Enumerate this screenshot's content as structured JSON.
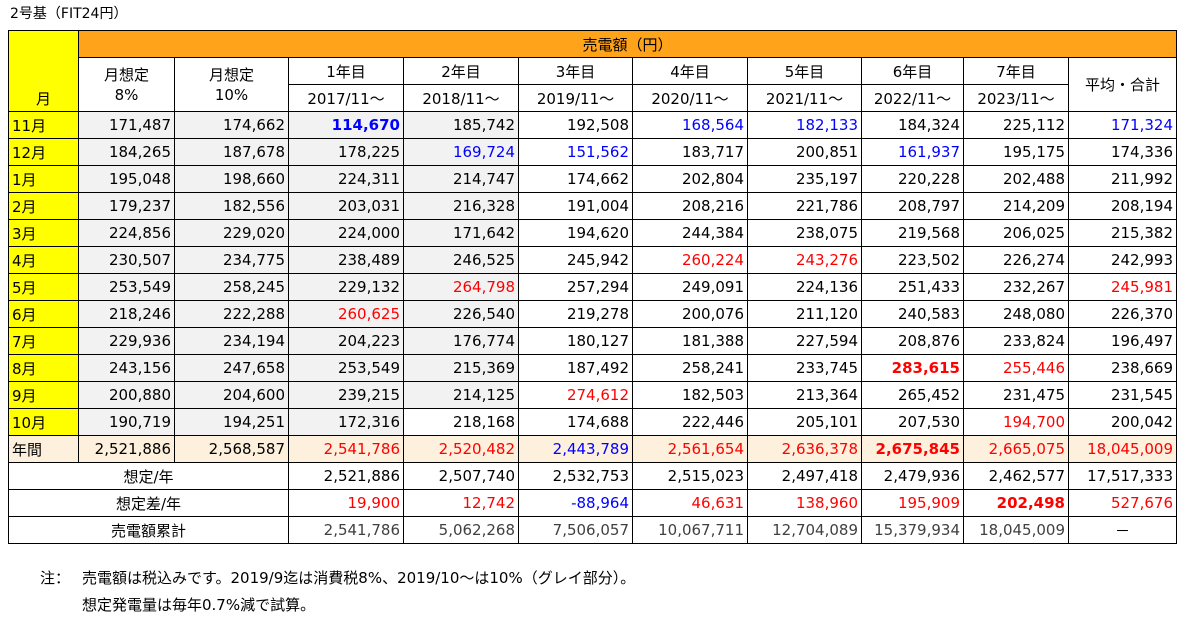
{
  "title": "2号基（FIT24円）",
  "header": {
    "month_label": "月",
    "sales_label": "売電額（円）",
    "assumed_8": [
      "月想定",
      "8%"
    ],
    "assumed_10": [
      "月想定",
      "10%"
    ],
    "years": [
      "1年目",
      "2年目",
      "3年目",
      "4年目",
      "5年目",
      "6年目",
      "7年目"
    ],
    "periods": [
      "2017/11～",
      "2018/11～",
      "2019/11～",
      "2020/11～",
      "2021/11～",
      "2022/11～",
      "2023/11～"
    ],
    "avg_total": "平均・合計"
  },
  "rows": [
    {
      "month": "11月",
      "a8": "171,487",
      "a10": "174,662",
      "v": [
        "114,670",
        "185,742",
        "192,508",
        "168,564",
        "182,133",
        "184,324",
        "225,112"
      ],
      "avg": "171,324",
      "c": [
        "blue-bold",
        "",
        "",
        "blue",
        "blue",
        "",
        ""
      ],
      "ac": "blue"
    },
    {
      "month": "12月",
      "a8": "184,265",
      "a10": "187,678",
      "v": [
        "178,225",
        "169,724",
        "151,562",
        "183,717",
        "200,851",
        "161,937",
        "195,175"
      ],
      "avg": "174,336",
      "c": [
        "",
        "blue",
        "blue",
        "",
        "",
        "blue",
        ""
      ],
      "ac": ""
    },
    {
      "month": "1月",
      "a8": "195,048",
      "a10": "198,660",
      "v": [
        "224,311",
        "214,747",
        "174,662",
        "202,804",
        "235,197",
        "220,228",
        "202,488"
      ],
      "avg": "211,992",
      "c": [
        "",
        "",
        "",
        "",
        "",
        "",
        ""
      ],
      "ac": ""
    },
    {
      "month": "2月",
      "a8": "179,237",
      "a10": "182,556",
      "v": [
        "203,031",
        "216,328",
        "191,004",
        "208,216",
        "221,786",
        "208,797",
        "214,209"
      ],
      "avg": "208,194",
      "c": [
        "",
        "",
        "",
        "",
        "",
        "",
        ""
      ],
      "ac": ""
    },
    {
      "month": "3月",
      "a8": "224,856",
      "a10": "229,020",
      "v": [
        "224,000",
        "171,642",
        "194,620",
        "244,384",
        "238,075",
        "219,568",
        "206,025"
      ],
      "avg": "215,382",
      "c": [
        "",
        "",
        "",
        "",
        "",
        "",
        ""
      ],
      "ac": ""
    },
    {
      "month": "4月",
      "a8": "230,507",
      "a10": "234,775",
      "v": [
        "238,489",
        "246,525",
        "245,942",
        "260,224",
        "243,276",
        "223,502",
        "226,274"
      ],
      "avg": "242,993",
      "c": [
        "",
        "",
        "",
        "red",
        "red",
        "",
        ""
      ],
      "ac": ""
    },
    {
      "month": "5月",
      "a8": "253,549",
      "a10": "258,245",
      "v": [
        "229,132",
        "264,798",
        "257,294",
        "249,091",
        "224,136",
        "251,433",
        "232,267"
      ],
      "avg": "245,981",
      "c": [
        "",
        "red",
        "",
        "",
        "",
        "",
        ""
      ],
      "ac": "red"
    },
    {
      "month": "6月",
      "a8": "218,246",
      "a10": "222,288",
      "v": [
        "260,625",
        "226,540",
        "219,278",
        "200,076",
        "211,120",
        "240,583",
        "248,080"
      ],
      "avg": "226,370",
      "c": [
        "red",
        "",
        "",
        "",
        "",
        "",
        ""
      ],
      "ac": ""
    },
    {
      "month": "7月",
      "a8": "229,936",
      "a10": "234,194",
      "v": [
        "204,223",
        "176,774",
        "180,127",
        "181,388",
        "227,594",
        "208,876",
        "233,824"
      ],
      "avg": "196,497",
      "c": [
        "",
        "",
        "",
        "",
        "",
        "",
        ""
      ],
      "ac": ""
    },
    {
      "month": "8月",
      "a8": "243,156",
      "a10": "247,658",
      "v": [
        "253,549",
        "215,369",
        "187,492",
        "258,241",
        "233,745",
        "283,615",
        "255,446"
      ],
      "avg": "238,669",
      "c": [
        "",
        "",
        "",
        "",
        "",
        "red-bold",
        "red"
      ],
      "ac": ""
    },
    {
      "month": "9月",
      "a8": "200,880",
      "a10": "204,600",
      "v": [
        "239,215",
        "214,125",
        "274,612",
        "182,503",
        "213,364",
        "265,452",
        "231,475"
      ],
      "avg": "231,545",
      "c": [
        "",
        "",
        "red",
        "",
        "",
        "",
        ""
      ],
      "ac": ""
    },
    {
      "month": "10月",
      "a8": "190,719",
      "a10": "194,251",
      "v": [
        "172,316",
        "218,168",
        "174,688",
        "222,446",
        "205,101",
        "207,530",
        "194,700"
      ],
      "avg": "200,042",
      "c": [
        "",
        "",
        "",
        "",
        "",
        "",
        "red"
      ],
      "ac": ""
    }
  ],
  "annual": {
    "label": "年間",
    "a8": "2,521,886",
    "a10": "2,568,587",
    "v": [
      "2,541,786",
      "2,520,482",
      "2,443,789",
      "2,561,654",
      "2,636,378",
      "2,675,845",
      "2,665,075"
    ],
    "total": "18,045,009",
    "c": [
      "red",
      "red",
      "blue",
      "red",
      "red",
      "red-bold",
      "red"
    ],
    "tc": "red"
  },
  "assumed_year": {
    "label": "想定/年",
    "v": [
      "2,521,886",
      "2,507,740",
      "2,532,753",
      "2,515,023",
      "2,497,418",
      "2,479,936",
      "2,462,577"
    ],
    "total": "17,517,333"
  },
  "assumed_diff": {
    "label": "想定差/年",
    "v": [
      "19,900",
      "12,742",
      "-88,964",
      "46,631",
      "138,960",
      "195,909",
      "202,498"
    ],
    "total": "527,676",
    "c": [
      "red",
      "red",
      "blue",
      "red",
      "red",
      "red",
      "red-bold"
    ],
    "tc": "red"
  },
  "cumulative": {
    "label": "売電額累計",
    "v": [
      "2,541,786",
      "5,062,268",
      "7,506,057",
      "10,067,711",
      "12,704,089",
      "15,379,934",
      "18,045,009"
    ],
    "total": "－"
  },
  "notes": {
    "label": "注：",
    "line1": "売電額は税込みです。2019/9迄は消費税8%、2019/10～は10%（グレイ部分）。",
    "line2": "想定発電量は毎年0.7%減で試算。"
  }
}
